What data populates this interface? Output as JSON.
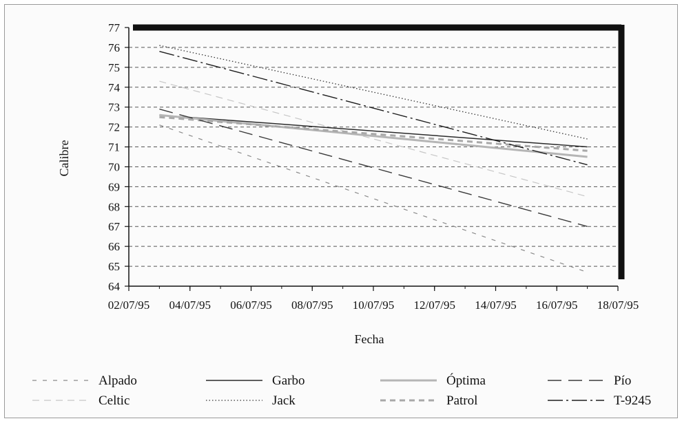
{
  "chart_data": {
    "type": "line",
    "xlabel": "Fecha",
    "ylabel": "Calibre",
    "x_ticks": [
      "02/07/95",
      "04/07/95",
      "06/07/95",
      "08/07/95",
      "10/07/95",
      "12/07/95",
      "14/07/95",
      "16/07/95",
      "18/07/95"
    ],
    "xlim": [
      "02/07/95",
      "18/07/95"
    ],
    "ylim": [
      64,
      77
    ],
    "y_ticks": [
      64,
      65,
      66,
      67,
      68,
      69,
      70,
      71,
      72,
      73,
      74,
      75,
      76,
      77
    ],
    "grid": "horizontal dashed",
    "legend_position": "bottom",
    "series": [
      {
        "name": "Alpado",
        "x": [
          "03/07/95",
          "17/07/95"
        ],
        "values": [
          72.1,
          64.7
        ],
        "color": "#8a8a8a"
      },
      {
        "name": "Celtic",
        "x": [
          "03/07/95",
          "17/07/95"
        ],
        "values": [
          74.3,
          68.5
        ],
        "color": "#c6c6c6"
      },
      {
        "name": "Garbo",
        "x": [
          "03/07/95",
          "17/07/95"
        ],
        "values": [
          72.6,
          71.0
        ],
        "color": "#2a2a2a"
      },
      {
        "name": "Jack",
        "x": [
          "03/07/95",
          "17/07/95"
        ],
        "values": [
          76.1,
          71.4
        ],
        "color": "#333333"
      },
      {
        "name": "Óptima",
        "x": [
          "03/07/95",
          "17/07/95"
        ],
        "values": [
          72.6,
          70.5
        ],
        "color": "#b5b5b5"
      },
      {
        "name": "Patrol",
        "x": [
          "03/07/95",
          "17/07/95"
        ],
        "values": [
          72.5,
          70.8
        ],
        "color": "#a8a8a8"
      },
      {
        "name": "Pío",
        "x": [
          "03/07/95",
          "17/07/95"
        ],
        "values": [
          72.9,
          67.0
        ],
        "color": "#3a3a3a"
      },
      {
        "name": "T-9245",
        "x": [
          "03/07/95",
          "17/07/95"
        ],
        "values": [
          75.8,
          70.1
        ],
        "color": "#1e1e1e"
      }
    ]
  }
}
